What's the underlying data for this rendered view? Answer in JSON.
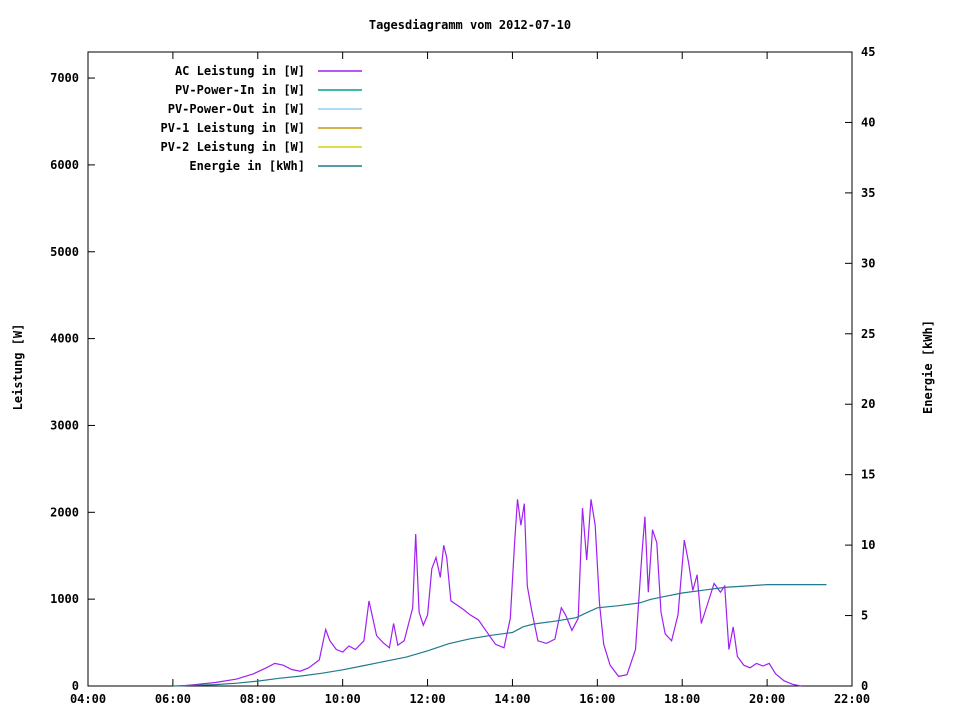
{
  "chart_data": {
    "type": "line",
    "title": "Tagesdiagramm vom 2012-07-10",
    "xlabel": "",
    "ylabel_left": "Leistung [W]",
    "ylabel_right": "Energie [kWh]",
    "x_range_hours": [
      4,
      22
    ],
    "x_ticks": [
      "04:00",
      "06:00",
      "08:00",
      "10:00",
      "12:00",
      "14:00",
      "16:00",
      "18:00",
      "20:00",
      "22:00"
    ],
    "y_left": {
      "min": 0,
      "max": 7300,
      "ticks": [
        0,
        1000,
        2000,
        3000,
        4000,
        5000,
        6000,
        7000
      ]
    },
    "y_right": {
      "min": 0,
      "max": 45,
      "ticks": [
        0,
        5,
        10,
        15,
        20,
        25,
        30,
        35,
        40,
        45
      ]
    },
    "grid": false,
    "legend_position": "top-left-inside",
    "legend": [
      {
        "label": "AC Leistung in [W]",
        "color": "#a020f0"
      },
      {
        "label": "PV-Power-In in [W]",
        "color": "#00a08c"
      },
      {
        "label": "PV-Power-Out in [W]",
        "color": "#8fd1f0"
      },
      {
        "label": "PV-1 Leistung in [W]",
        "color": "#c8960c"
      },
      {
        "label": "PV-2 Leistung in [W]",
        "color": "#d4d411"
      },
      {
        "label": "Energie in [kWh]",
        "color": "#1f7a8c"
      }
    ],
    "series": [
      {
        "name": "AC Leistung in [W]",
        "color": "#a020f0",
        "axis": "left",
        "points": [
          [
            6.17,
            0
          ],
          [
            6.5,
            15
          ],
          [
            7.0,
            40
          ],
          [
            7.5,
            80
          ],
          [
            7.9,
            140
          ],
          [
            8.2,
            210
          ],
          [
            8.4,
            260
          ],
          [
            8.6,
            240
          ],
          [
            8.8,
            190
          ],
          [
            9.0,
            170
          ],
          [
            9.2,
            210
          ],
          [
            9.45,
            300
          ],
          [
            9.6,
            650
          ],
          [
            9.7,
            520
          ],
          [
            9.85,
            420
          ],
          [
            10.0,
            390
          ],
          [
            10.15,
            460
          ],
          [
            10.3,
            420
          ],
          [
            10.5,
            520
          ],
          [
            10.62,
            980
          ],
          [
            10.7,
            800
          ],
          [
            10.8,
            580
          ],
          [
            10.95,
            500
          ],
          [
            11.1,
            440
          ],
          [
            11.2,
            720
          ],
          [
            11.3,
            470
          ],
          [
            11.45,
            520
          ],
          [
            11.65,
            900
          ],
          [
            11.72,
            1750
          ],
          [
            11.8,
            850
          ],
          [
            11.9,
            700
          ],
          [
            12.0,
            820
          ],
          [
            12.1,
            1350
          ],
          [
            12.2,
            1480
          ],
          [
            12.3,
            1250
          ],
          [
            12.38,
            1620
          ],
          [
            12.45,
            1480
          ],
          [
            12.55,
            980
          ],
          [
            12.7,
            930
          ],
          [
            12.85,
            880
          ],
          [
            13.0,
            820
          ],
          [
            13.2,
            760
          ],
          [
            13.4,
            620
          ],
          [
            13.6,
            480
          ],
          [
            13.8,
            440
          ],
          [
            13.95,
            780
          ],
          [
            14.05,
            1650
          ],
          [
            14.12,
            2150
          ],
          [
            14.2,
            1850
          ],
          [
            14.28,
            2100
          ],
          [
            14.35,
            1150
          ],
          [
            14.45,
            880
          ],
          [
            14.6,
            520
          ],
          [
            14.8,
            490
          ],
          [
            15.0,
            540
          ],
          [
            15.15,
            900
          ],
          [
            15.25,
            820
          ],
          [
            15.4,
            640
          ],
          [
            15.55,
            780
          ],
          [
            15.65,
            2050
          ],
          [
            15.75,
            1450
          ],
          [
            15.85,
            2150
          ],
          [
            15.95,
            1850
          ],
          [
            16.05,
            950
          ],
          [
            16.15,
            480
          ],
          [
            16.3,
            240
          ],
          [
            16.5,
            110
          ],
          [
            16.7,
            130
          ],
          [
            16.9,
            420
          ],
          [
            17.05,
            1520
          ],
          [
            17.12,
            1950
          ],
          [
            17.2,
            1080
          ],
          [
            17.3,
            1800
          ],
          [
            17.4,
            1650
          ],
          [
            17.5,
            850
          ],
          [
            17.6,
            600
          ],
          [
            17.75,
            520
          ],
          [
            17.9,
            820
          ],
          [
            18.05,
            1680
          ],
          [
            18.15,
            1420
          ],
          [
            18.25,
            1100
          ],
          [
            18.35,
            1280
          ],
          [
            18.45,
            720
          ],
          [
            18.6,
            950
          ],
          [
            18.75,
            1180
          ],
          [
            18.9,
            1080
          ],
          [
            19.0,
            1150
          ],
          [
            19.1,
            420
          ],
          [
            19.2,
            680
          ],
          [
            19.3,
            340
          ],
          [
            19.45,
            240
          ],
          [
            19.6,
            210
          ],
          [
            19.75,
            260
          ],
          [
            19.9,
            230
          ],
          [
            20.05,
            260
          ],
          [
            20.2,
            140
          ],
          [
            20.4,
            60
          ],
          [
            20.6,
            20
          ],
          [
            20.8,
            0
          ]
        ]
      },
      {
        "name": "Energie in [kWh]",
        "color": "#1f7a8c",
        "axis": "right",
        "points": [
          [
            6.0,
            0
          ],
          [
            6.5,
            0.05
          ],
          [
            7.0,
            0.1
          ],
          [
            7.5,
            0.2
          ],
          [
            8.0,
            0.35
          ],
          [
            8.5,
            0.55
          ],
          [
            9.0,
            0.7
          ],
          [
            9.5,
            0.9
          ],
          [
            10.0,
            1.15
          ],
          [
            10.5,
            1.45
          ],
          [
            11.0,
            1.75
          ],
          [
            11.5,
            2.05
          ],
          [
            12.0,
            2.5
          ],
          [
            12.5,
            3.0
          ],
          [
            13.0,
            3.35
          ],
          [
            13.5,
            3.6
          ],
          [
            14.0,
            3.8
          ],
          [
            14.25,
            4.2
          ],
          [
            14.5,
            4.4
          ],
          [
            15.0,
            4.6
          ],
          [
            15.5,
            4.85
          ],
          [
            15.75,
            5.2
          ],
          [
            16.0,
            5.55
          ],
          [
            16.5,
            5.7
          ],
          [
            17.0,
            5.9
          ],
          [
            17.25,
            6.15
          ],
          [
            17.5,
            6.3
          ],
          [
            18.0,
            6.6
          ],
          [
            18.5,
            6.8
          ],
          [
            19.0,
            7.0
          ],
          [
            19.5,
            7.1
          ],
          [
            20.0,
            7.2
          ],
          [
            21.4,
            7.2
          ]
        ]
      }
    ]
  }
}
